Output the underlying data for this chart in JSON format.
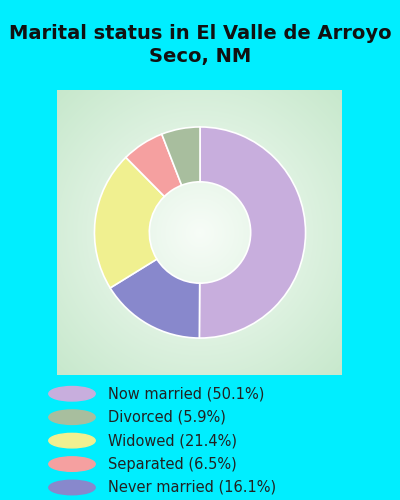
{
  "title": "Marital status in El Valle de Arroyo\nSeco, NM",
  "slices": [
    50.1,
    16.1,
    21.4,
    6.5,
    5.9
  ],
  "labels": [
    "Now married (50.1%)",
    "Divorced (5.9%)",
    "Widowed (21.4%)",
    "Separated (6.5%)",
    "Never married (16.1%)"
  ],
  "legend_colors": [
    "#c8aedd",
    "#a8be9e",
    "#f0f090",
    "#f5a0a0",
    "#8888cc"
  ],
  "slice_colors": [
    "#c8aedd",
    "#8888cc",
    "#f0f090",
    "#f5a0a0",
    "#a8be9e"
  ],
  "bg_cyan": "#00eeff",
  "bg_chart_center": "#f8faf8",
  "bg_chart_edge": "#c8e8cc",
  "title_fontsize": 14,
  "legend_fontsize": 10.5,
  "start_angle": 90,
  "donut_width": 0.52
}
